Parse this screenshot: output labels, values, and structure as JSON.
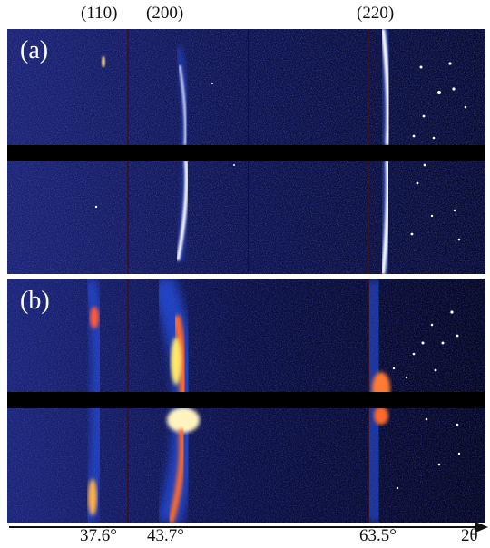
{
  "peak_labels": {
    "p110": "(110)",
    "p200": "(200)",
    "p220": "(220)"
  },
  "panels": {
    "a": "(a)",
    "b": "(b)"
  },
  "axis": {
    "angle_1": "37.6°",
    "angle_2": "43.7°",
    "angle_3": "63.5°",
    "axis_symbol": "2θ"
  },
  "colors": {
    "background": "#0c0f3c",
    "beam_stop": "#000000",
    "hot": "#ffe86a",
    "warm": "#ff6a2a",
    "cool": "#2a4cd8"
  }
}
